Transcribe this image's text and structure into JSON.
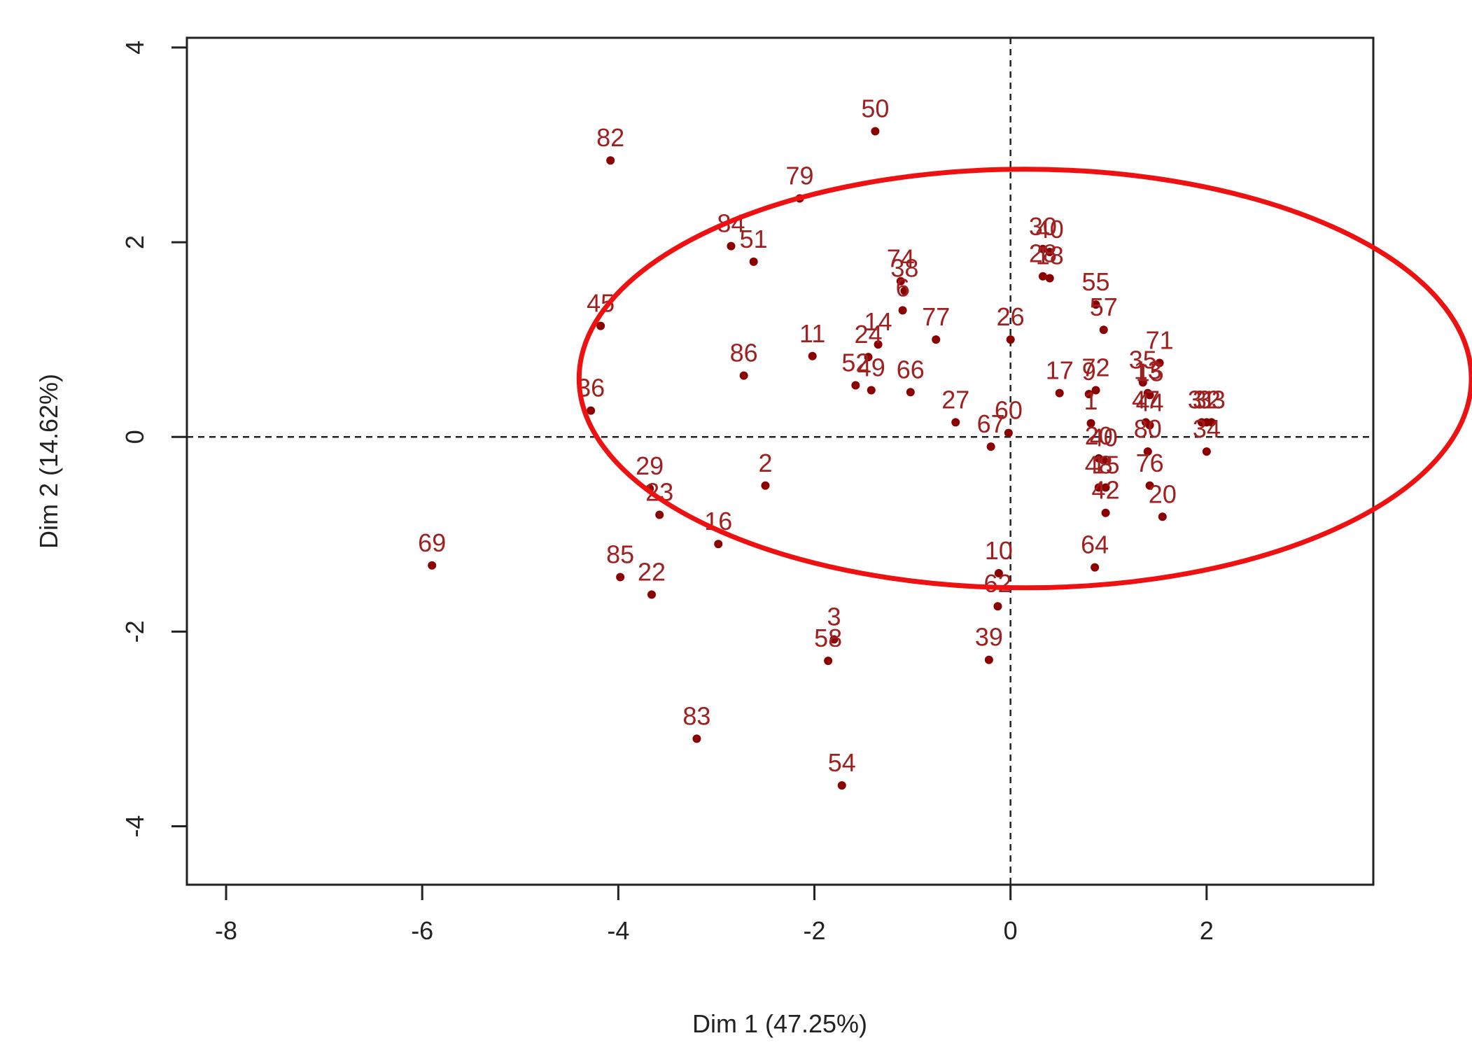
{
  "chart_data": {
    "type": "scatter",
    "xlabel": "Dim 1 (47.25%)",
    "ylabel": "Dim 2 (14.62%)",
    "xlim": [
      -8.4,
      3.7
    ],
    "ylim": [
      -4.6,
      4.1
    ],
    "xticks": [
      -8,
      -6,
      -4,
      -2,
      0,
      2
    ],
    "yticks": [
      -4,
      -2,
      0,
      2,
      4
    ],
    "xtick_labels": [
      "-8",
      "-6",
      "-4",
      "-2",
      "0",
      "2"
    ],
    "ytick_labels": [
      "-4",
      "-2",
      "0",
      "2",
      "4"
    ],
    "reference_lines": {
      "x": 0,
      "y": 0,
      "style": "dashed"
    },
    "grid": false,
    "colors": {
      "points": "#8b0000",
      "labels": "#a02020",
      "highlight": "#ee1111",
      "axes": "#222222"
    },
    "highlight_ellipse": {
      "center": [
        0.15,
        0.6
      ],
      "semi_axis_x": 4.55,
      "semi_axis_y": 2.15,
      "description": "red ellipse enclosing main cluster"
    },
    "points": [
      {
        "label": "50",
        "x": -1.38,
        "y": 3.14
      },
      {
        "label": "82",
        "x": -4.08,
        "y": 2.84
      },
      {
        "label": "79",
        "x": -2.15,
        "y": 2.45
      },
      {
        "label": "84",
        "x": -2.85,
        "y": 1.96
      },
      {
        "label": "51",
        "x": -2.62,
        "y": 1.8
      },
      {
        "label": "30",
        "x": 0.33,
        "y": 1.93
      },
      {
        "label": "40",
        "x": 0.4,
        "y": 1.9
      },
      {
        "label": "28",
        "x": 0.33,
        "y": 1.65
      },
      {
        "label": "18",
        "x": 0.4,
        "y": 1.63
      },
      {
        "label": "74",
        "x": -1.12,
        "y": 1.6
      },
      {
        "label": "38",
        "x": -1.08,
        "y": 1.5
      },
      {
        "label": "45",
        "x": -4.18,
        "y": 1.14
      },
      {
        "label": "6",
        "x": -1.1,
        "y": 1.3
      },
      {
        "label": "77",
        "x": -0.76,
        "y": 1.0
      },
      {
        "label": "26",
        "x": 0.0,
        "y": 1.0
      },
      {
        "label": "55",
        "x": 0.87,
        "y": 1.36
      },
      {
        "label": "57",
        "x": 0.95,
        "y": 1.1
      },
      {
        "label": "11",
        "x": -2.02,
        "y": 0.83
      },
      {
        "label": "24",
        "x": -1.45,
        "y": 0.82
      },
      {
        "label": "14",
        "x": -1.35,
        "y": 0.95
      },
      {
        "label": "71",
        "x": 1.52,
        "y": 0.76
      },
      {
        "label": "86",
        "x": -2.72,
        "y": 0.63
      },
      {
        "label": "52",
        "x": -1.58,
        "y": 0.53
      },
      {
        "label": "49",
        "x": -1.42,
        "y": 0.48
      },
      {
        "label": "66",
        "x": -1.02,
        "y": 0.46
      },
      {
        "label": "17",
        "x": 0.5,
        "y": 0.45
      },
      {
        "label": "72",
        "x": 0.87,
        "y": 0.48
      },
      {
        "label": "35",
        "x": 1.35,
        "y": 0.56
      },
      {
        "label": "36",
        "x": -4.28,
        "y": 0.27
      },
      {
        "label": "27",
        "x": -0.56,
        "y": 0.15
      },
      {
        "label": "9",
        "x": 0.8,
        "y": 0.44
      },
      {
        "label": "13",
        "x": 1.4,
        "y": 0.45
      },
      {
        "label": "15",
        "x": 1.42,
        "y": 0.43
      },
      {
        "label": "60",
        "x": -0.02,
        "y": 0.04
      },
      {
        "label": "67",
        "x": -0.2,
        "y": -0.1
      },
      {
        "label": "47",
        "x": 1.38,
        "y": 0.15
      },
      {
        "label": "44",
        "x": 1.42,
        "y": 0.12
      },
      {
        "label": "1",
        "x": 0.82,
        "y": 0.14
      },
      {
        "label": "2",
        "x": -2.5,
        "y": -0.5
      },
      {
        "label": "20",
        "x": 0.9,
        "y": -0.22
      },
      {
        "label": "40",
        "x": 0.95,
        "y": -0.24
      },
      {
        "label": "80",
        "x": 1.4,
        "y": -0.15
      },
      {
        "label": "31",
        "x": 1.95,
        "y": 0.15
      },
      {
        "label": "32",
        "x": 2.0,
        "y": 0.15
      },
      {
        "label": "33",
        "x": 2.05,
        "y": 0.15
      },
      {
        "label": "34",
        "x": 2.0,
        "y": -0.15
      },
      {
        "label": "29",
        "x": -3.68,
        "y": -0.53
      },
      {
        "label": "23",
        "x": -3.58,
        "y": -0.8
      },
      {
        "label": "48",
        "x": 0.9,
        "y": -0.52
      },
      {
        "label": "15",
        "x": 0.97,
        "y": -0.52
      },
      {
        "label": "76",
        "x": 1.42,
        "y": -0.5
      },
      {
        "label": "20",
        "x": 1.55,
        "y": -0.82
      },
      {
        "label": "42",
        "x": 0.97,
        "y": -0.78
      },
      {
        "label": "16",
        "x": -2.98,
        "y": -1.1
      },
      {
        "label": "69",
        "x": -5.9,
        "y": -1.32
      },
      {
        "label": "85",
        "x": -3.98,
        "y": -1.44
      },
      {
        "label": "22",
        "x": -3.66,
        "y": -1.62
      },
      {
        "label": "10",
        "x": -0.12,
        "y": -1.4
      },
      {
        "label": "64",
        "x": 0.86,
        "y": -1.34
      },
      {
        "label": "62",
        "x": -0.13,
        "y": -1.74
      },
      {
        "label": "3",
        "x": -1.8,
        "y": -2.08
      },
      {
        "label": "58",
        "x": -1.86,
        "y": -2.3
      },
      {
        "label": "39",
        "x": -0.22,
        "y": -2.29
      },
      {
        "label": "83",
        "x": -3.2,
        "y": -3.1
      },
      {
        "label": "54",
        "x": -1.72,
        "y": -3.58
      }
    ]
  }
}
